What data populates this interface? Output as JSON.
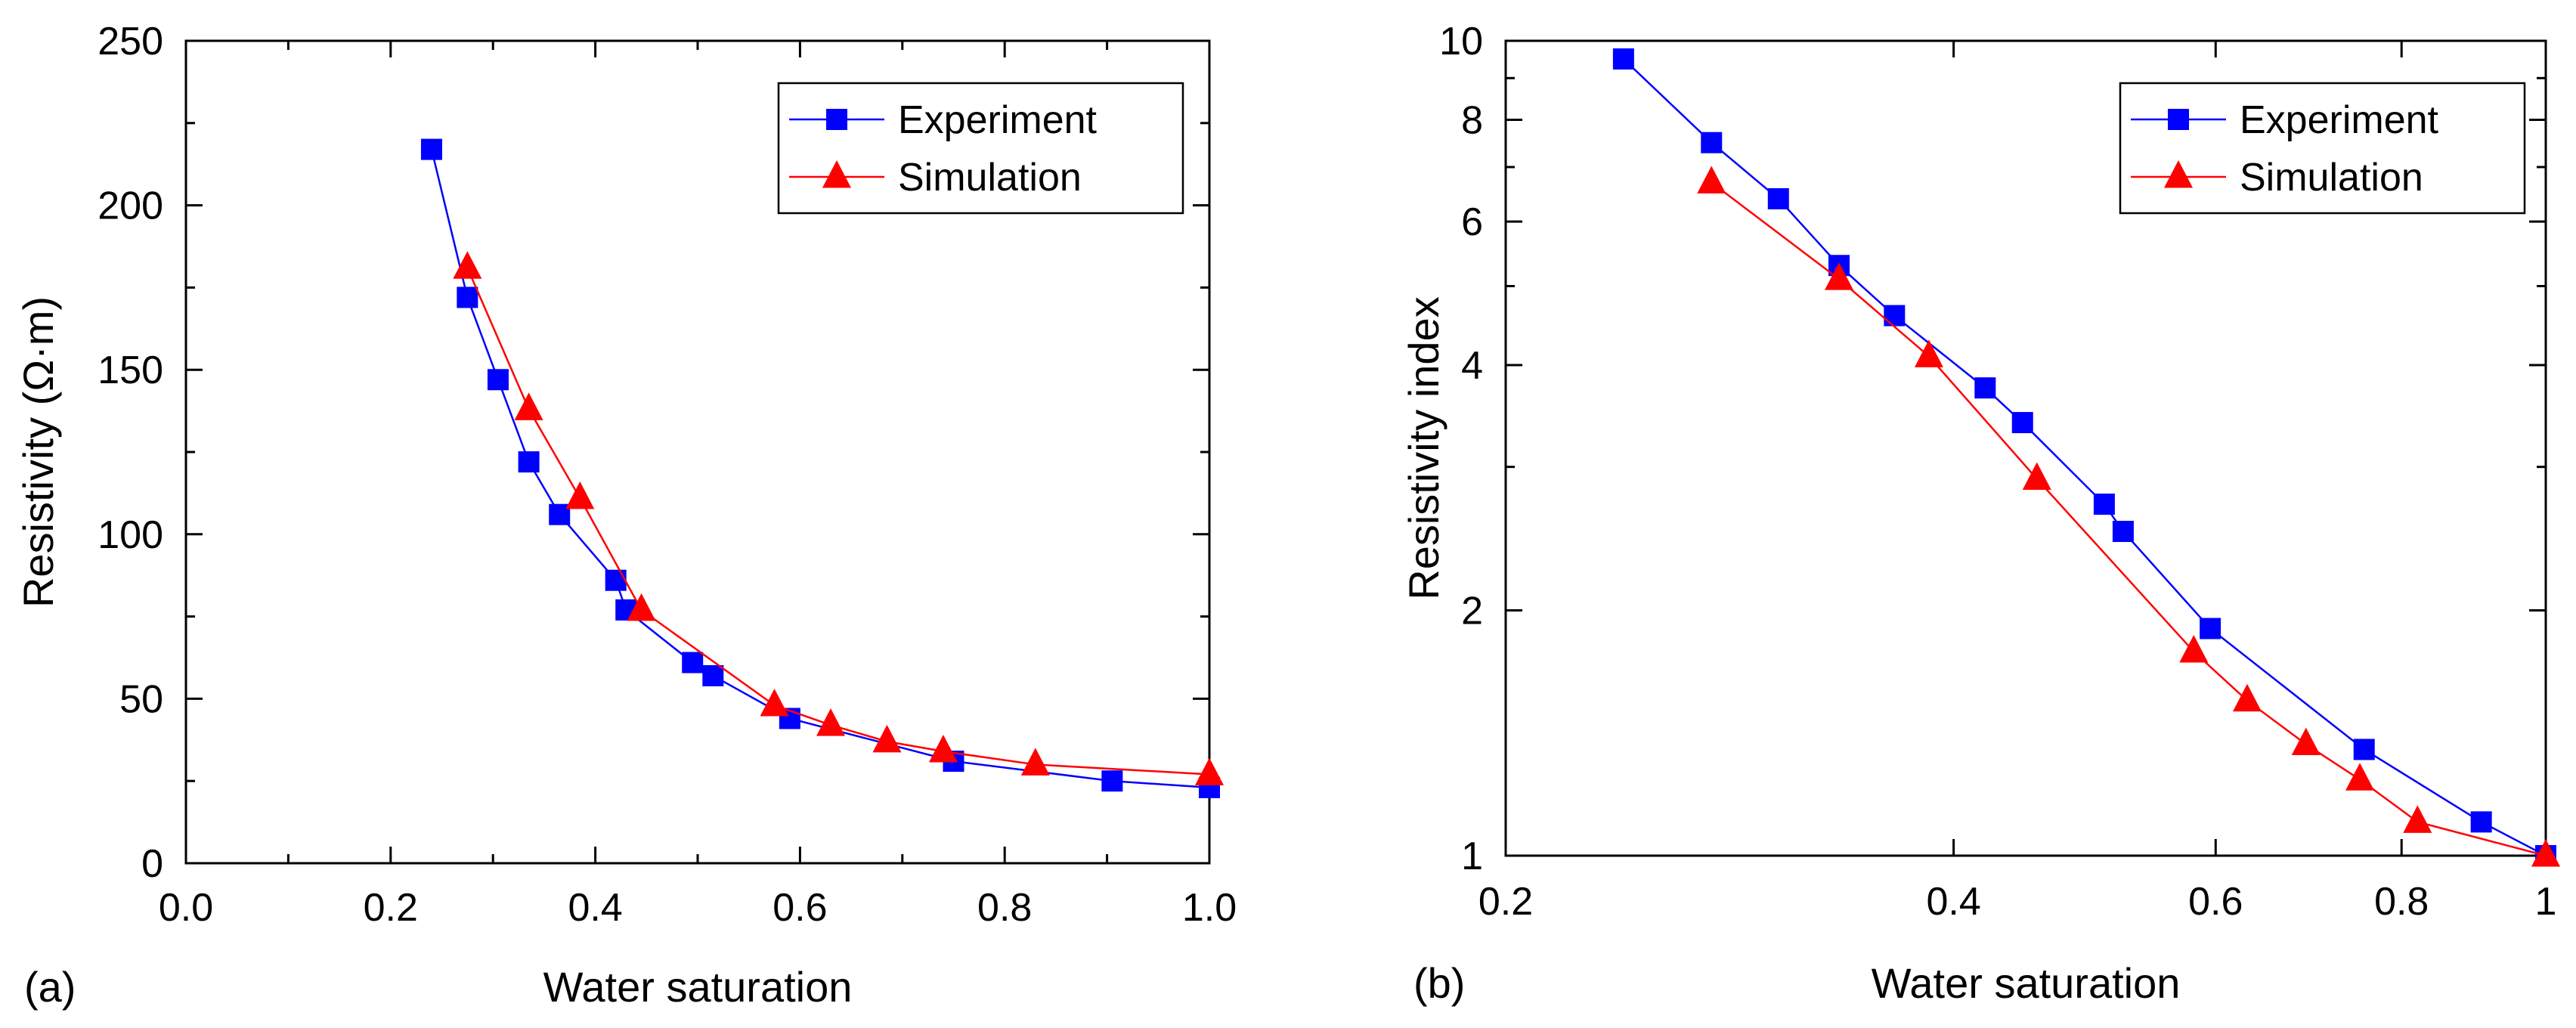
{
  "chart_data": [
    {
      "type": "line",
      "panel_label": "(a)",
      "xlabel": "Water saturation",
      "ylabel": "Resistivity (Ω·m)",
      "xlim": [
        0.0,
        1.0
      ],
      "ylim": [
        0,
        250
      ],
      "xscale": "linear",
      "yscale": "linear",
      "xticks": [
        0.0,
        0.2,
        0.4,
        0.6,
        0.8,
        1.0
      ],
      "xtick_labels": [
        "0.0",
        "0.2",
        "0.4",
        "0.6",
        "0.8",
        "1.0"
      ],
      "yticks": [
        0,
        50,
        100,
        150,
        200,
        250
      ],
      "ytick_labels": [
        "0",
        "50",
        "100",
        "150",
        "200",
        "250"
      ],
      "grid": false,
      "legend_position": "top-right",
      "series": [
        {
          "name": "Experiment",
          "color": "#0000ff",
          "marker": "square",
          "x": [
            0.24,
            0.275,
            0.305,
            0.335,
            0.365,
            0.42,
            0.43,
            0.495,
            0.515,
            0.59,
            0.75,
            0.905,
            1.0
          ],
          "y": [
            217,
            172,
            147,
            122,
            106,
            86,
            77,
            61,
            57,
            44,
            31,
            25,
            23
          ]
        },
        {
          "name": "Simulation",
          "color": "#ff0000",
          "marker": "triangle",
          "x": [
            0.275,
            0.335,
            0.385,
            0.445,
            0.575,
            0.63,
            0.685,
            0.74,
            0.83,
            1.0
          ],
          "y": [
            181,
            138,
            111,
            77,
            48,
            42,
            37,
            34,
            30,
            27
          ]
        }
      ]
    },
    {
      "type": "line",
      "panel_label": "(b)",
      "xlabel": "Water saturation",
      "ylabel": "Resistivity index",
      "xlim": [
        0.2,
        1.0
      ],
      "ylim": [
        1,
        10
      ],
      "xscale": "log",
      "yscale": "log",
      "xticks": [
        0.2,
        0.4,
        0.6,
        0.8,
        1.0
      ],
      "xtick_labels": [
        "0.2",
        "0.4",
        "0.6",
        "0.8",
        "1"
      ],
      "yticks": [
        1,
        2,
        4,
        6,
        8,
        10
      ],
      "ytick_labels": [
        "1",
        "2",
        "4",
        "6",
        "8",
        "10"
      ],
      "grid": false,
      "legend_position": "top-right",
      "series": [
        {
          "name": "Experiment",
          "color": "#0000ff",
          "marker": "square",
          "x": [
            0.24,
            0.275,
            0.305,
            0.335,
            0.365,
            0.42,
            0.445,
            0.505,
            0.52,
            0.595,
            0.755,
            0.905,
            1.0
          ],
          "y": [
            9.5,
            7.5,
            6.4,
            5.3,
            4.6,
            3.75,
            3.4,
            2.7,
            2.5,
            1.9,
            1.35,
            1.1,
            1.0
          ]
        },
        {
          "name": "Simulation",
          "color": "#ff0000",
          "marker": "triangle",
          "x": [
            0.275,
            0.335,
            0.385,
            0.455,
            0.58,
            0.63,
            0.69,
            0.75,
            0.82,
            1.0
          ],
          "y": [
            6.7,
            5.1,
            4.1,
            2.9,
            1.78,
            1.55,
            1.37,
            1.24,
            1.1,
            1.0
          ]
        }
      ]
    }
  ]
}
